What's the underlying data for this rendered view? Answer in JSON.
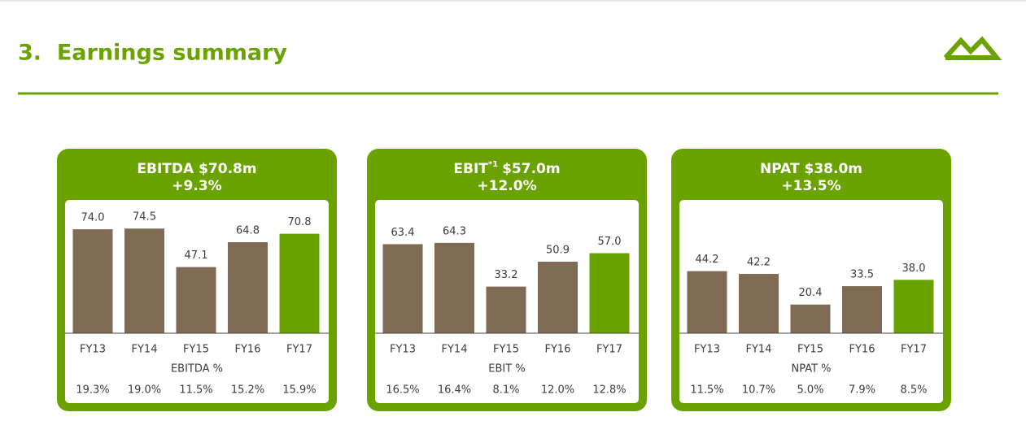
{
  "header": {
    "title": "3.  Earnings summary"
  },
  "chart_data": [
    {
      "type": "bar",
      "title": "EBITDA $70.8m",
      "subtitle": "+9.3%",
      "categories": [
        "FY13",
        "FY14",
        "FY15",
        "FY16",
        "FY17"
      ],
      "values": [
        74.0,
        74.5,
        47.1,
        64.8,
        70.8
      ],
      "value_labels": [
        "74.0",
        "74.5",
        "47.1",
        "64.8",
        "70.8"
      ],
      "colors": [
        "#7f6a53",
        "#7f6a53",
        "#7f6a53",
        "#7f6a53",
        "#6aa300"
      ],
      "ylim": [
        0,
        92
      ],
      "margin_label": "EBITDA %",
      "margins": [
        "19.3%",
        "19.0%",
        "11.5%",
        "15.2%",
        "15.9%"
      ]
    },
    {
      "type": "bar",
      "title": "EBIT",
      "title_sup": "*1",
      "title_after": "$57.0m",
      "subtitle": "+12.0%",
      "categories": [
        "FY13",
        "FY14",
        "FY15",
        "FY16",
        "FY17"
      ],
      "values": [
        63.4,
        64.3,
        33.2,
        50.9,
        57.0
      ],
      "value_labels": [
        "63.4",
        "64.3",
        "33.2",
        "50.9",
        "57.0"
      ],
      "colors": [
        "#7f6a53",
        "#7f6a53",
        "#7f6a53",
        "#7f6a53",
        "#6aa300"
      ],
      "ylim": [
        0,
        92
      ],
      "margin_label": "EBIT %",
      "margins": [
        "16.5%",
        "16.4%",
        "8.1%",
        "12.0%",
        "12.8%"
      ]
    },
    {
      "type": "bar",
      "title": "NPAT $38.0m",
      "subtitle": "+13.5%",
      "categories": [
        "FY13",
        "FY14",
        "FY15",
        "FY16",
        "FY17"
      ],
      "values": [
        44.2,
        42.2,
        20.4,
        33.5,
        38.0
      ],
      "value_labels": [
        "44.2",
        "42.2",
        "20.4",
        "33.5",
        "38.0"
      ],
      "colors": [
        "#7f6a53",
        "#7f6a53",
        "#7f6a53",
        "#7f6a53",
        "#6aa300"
      ],
      "ylim": [
        0,
        92
      ],
      "margin_label": "NPAT %",
      "margins": [
        "11.5%",
        "10.7%",
        "5.0%",
        "7.9%",
        "8.5%"
      ]
    }
  ]
}
